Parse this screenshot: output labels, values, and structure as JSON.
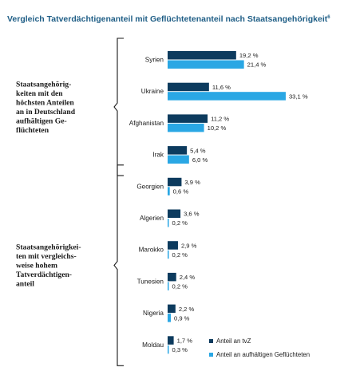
{
  "chart_data": {
    "type": "bar",
    "orientation": "horizontal",
    "title": "Vergleich Tatverdächtigenanteil mit Geflüchtetenanteil nach Staatsangehörigkeit",
    "title_footnote": "6",
    "categories": [
      "Syrien",
      "Ukraine",
      "Afghanistan",
      "Irak",
      "Georgien",
      "Algerien",
      "Marokko",
      "Tunesien",
      "Nigeria",
      "Moldau"
    ],
    "series": [
      {
        "name": "Anteil an tvZ",
        "color": "#0d3b5e",
        "values": [
          19.2,
          11.6,
          11.2,
          5.4,
          3.9,
          3.6,
          2.9,
          2.4,
          2.2,
          1.7
        ],
        "labels": [
          "19,2 %",
          "11,6 %",
          "11,2 %",
          "5,4 %",
          "3,9 %",
          "3,6 %",
          "2,9 %",
          "2,4 %",
          "2,2 %",
          "1,7 %"
        ]
      },
      {
        "name": "Anteil an aufhältigen Geflüchteten",
        "color": "#2aa7e4",
        "values": [
          21.4,
          33.1,
          10.2,
          6.0,
          0.6,
          0.2,
          0.2,
          0.2,
          0.9,
          0.3
        ],
        "labels": [
          "21,4 %",
          "33,1 %",
          "10,2 %",
          "6,0 %",
          "0,6 %",
          "0,2 %",
          "0,2 %",
          "0,2 %",
          "0,9 %",
          "0,3 %"
        ]
      }
    ],
    "groups": [
      {
        "label_lines": [
          "Staatsangehörig-",
          "keiten mit den",
          "höchsten Anteilen",
          "an in Deutschland",
          "aufhältigen Ge-",
          "flüchteten"
        ],
        "categories": [
          "Syrien",
          "Ukraine",
          "Afghanistan",
          "Irak"
        ]
      },
      {
        "label_lines": [
          "Staatsangehörigkei-",
          "ten mit vergleichs-",
          "weise hohem",
          "Tatverdächtigen-",
          "anteil"
        ],
        "categories": [
          "Georgien",
          "Algerien",
          "Marokko",
          "Tunesien",
          "Nigeria",
          "Moldau"
        ]
      }
    ],
    "legend_position": "bottom-right",
    "grid": false
  }
}
